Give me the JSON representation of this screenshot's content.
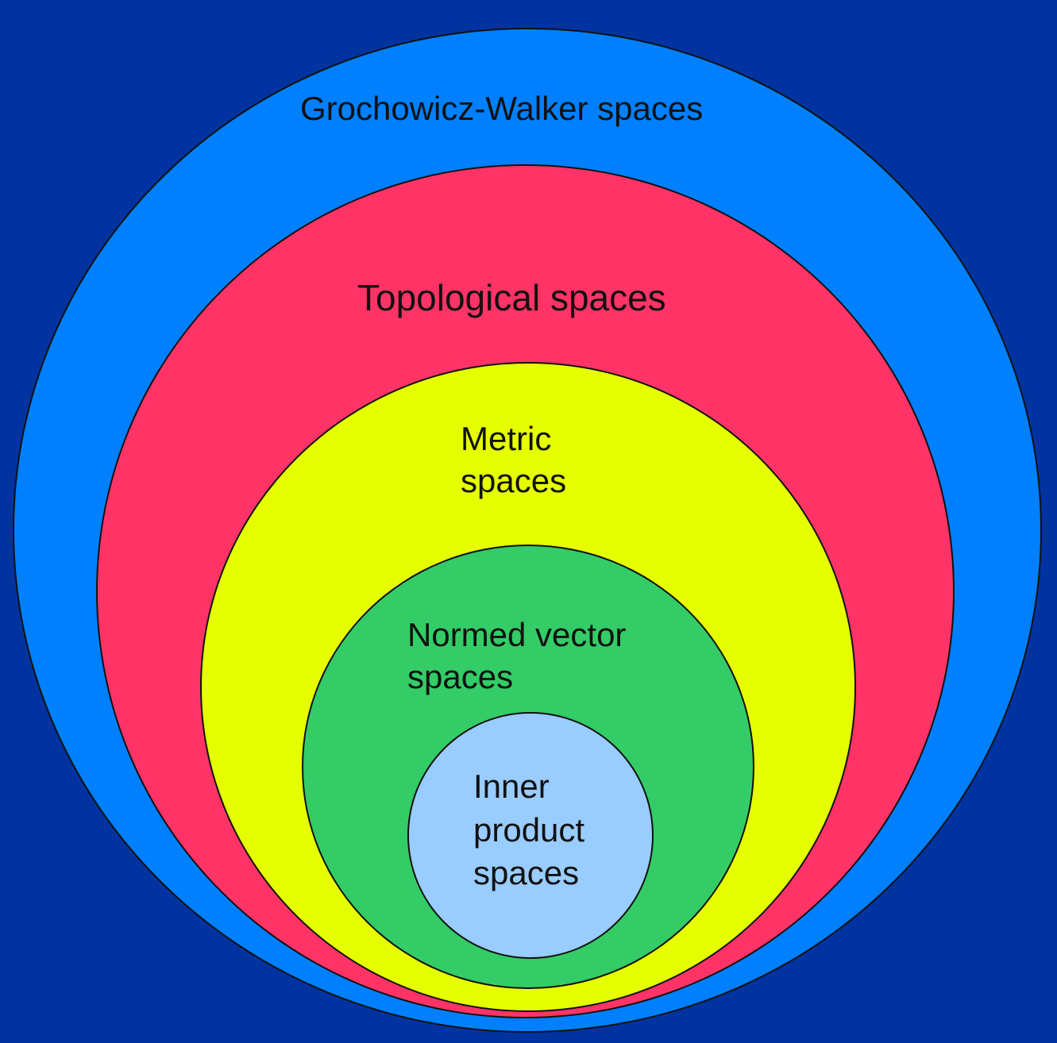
{
  "colors": {
    "background": "#0033A0",
    "grochowicz_walker": "#0080FF",
    "topological": "#FF3366",
    "metric": "#E5FF00",
    "normed_vector": "#33CC66",
    "inner_product": "#99CCFF",
    "outline": "#111111"
  },
  "sets": {
    "grochowicz_walker": {
      "label": "Grochowicz-Walker spaces"
    },
    "topological": {
      "label": "Topological spaces"
    },
    "metric": {
      "label_lines": [
        "Metric",
        "spaces"
      ]
    },
    "normed_vector": {
      "label_lines": [
        "Normed vector",
        "spaces"
      ]
    },
    "inner_product": {
      "label_lines": [
        "Inner",
        "product",
        "spaces"
      ]
    }
  }
}
